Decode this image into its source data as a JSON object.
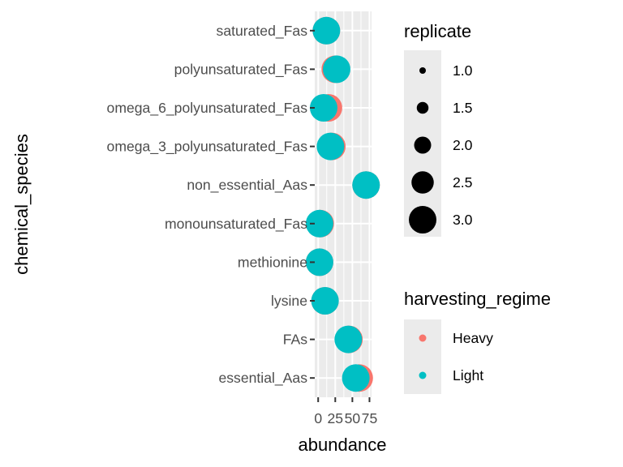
{
  "chart_data": {
    "type": "scatter",
    "xlabel": "abundance",
    "ylabel": "chemical_species",
    "xlim": [
      -5,
      78
    ],
    "x_ticks": [
      0,
      25,
      50,
      75
    ],
    "x_tick_labels": [
      "0",
      "25",
      "50",
      "75"
    ],
    "x_tick_text": "0250750",
    "categories": [
      "essential_Aas",
      "FAs",
      "lysine",
      "methionine",
      "monounsaturated_Fas",
      "non_essential_Aas",
      "omega_3_polyunsaturated_Fas",
      "omega_6_polyunsaturated_Fas",
      "polyunsaturated_Fas",
      "saturated_Fas"
    ],
    "grid": true,
    "colors": {
      "Heavy": "#F8766D",
      "Light": "#00BFC4"
    },
    "series": [
      {
        "name": "Heavy",
        "color": "#F8766D",
        "points": [
          {
            "category": "essential_Aas",
            "x": 60,
            "replicate": 3.0
          },
          {
            "category": "FAs",
            "x": 45,
            "replicate": 3.0
          },
          {
            "category": "lysine",
            "x": 10,
            "replicate": 3.0
          },
          {
            "category": "methionine",
            "x": 2,
            "replicate": 3.0
          },
          {
            "category": "monounsaturated_Fas",
            "x": 3,
            "replicate": 3.0
          },
          {
            "category": "non_essential_Aas",
            "x": 70,
            "replicate": 3.0
          },
          {
            "category": "omega_3_polyunsaturated_Fas",
            "x": 20,
            "replicate": 3.0
          },
          {
            "category": "omega_6_polyunsaturated_Fas",
            "x": 15,
            "replicate": 3.0
          },
          {
            "category": "polyunsaturated_Fas",
            "x": 25,
            "replicate": 3.0
          },
          {
            "category": "saturated_Fas",
            "x": 12,
            "replicate": 3.0
          }
        ]
      },
      {
        "name": "Light",
        "color": "#00BFC4",
        "points": [
          {
            "category": "essential_Aas",
            "x": 55,
            "replicate": 3.0
          },
          {
            "category": "FAs",
            "x": 44,
            "replicate": 3.0
          },
          {
            "category": "lysine",
            "x": 10,
            "replicate": 3.0
          },
          {
            "category": "methionine",
            "x": 2,
            "replicate": 3.0
          },
          {
            "category": "monounsaturated_Fas",
            "x": 2,
            "replicate": 3.0
          },
          {
            "category": "non_essential_Aas",
            "x": 70,
            "replicate": 3.0
          },
          {
            "category": "omega_3_polyunsaturated_Fas",
            "x": 18,
            "replicate": 3.0
          },
          {
            "category": "omega_6_polyunsaturated_Fas",
            "x": 8,
            "replicate": 3.0
          },
          {
            "category": "polyunsaturated_Fas",
            "x": 27,
            "replicate": 3.0
          },
          {
            "category": "saturated_Fas",
            "x": 12,
            "replicate": 3.0
          }
        ]
      }
    ],
    "legends": [
      {
        "title": "replicate",
        "kind": "size",
        "labels": [
          "1.0",
          "1.5",
          "2.0",
          "2.5",
          "3.0"
        ],
        "values": [
          1.0,
          1.5,
          2.0,
          2.5,
          3.0
        ]
      },
      {
        "title": "harvesting_regime",
        "kind": "color",
        "labels": [
          "Heavy",
          "Light"
        ]
      }
    ],
    "legend_position": "right"
  }
}
